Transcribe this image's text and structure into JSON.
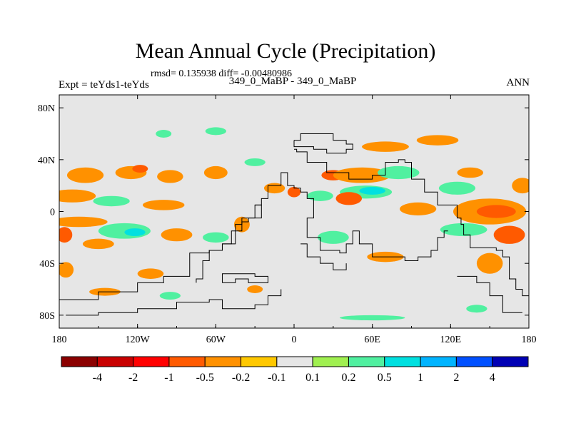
{
  "chart_data": {
    "type": "heatmap",
    "title": "Mean Annual Cycle (Precipitation)",
    "stats_line": "rmsd= 0.135938 diff= -0.00480986",
    "center_string": "349_0_MaBP - 349_0_MaBP",
    "left_string": "Expt = teYds1-teYds",
    "right_string": "ANN",
    "xlim": [
      -180,
      180
    ],
    "ylim": [
      -90,
      90
    ],
    "x_ticks": [
      {
        "value": -180,
        "label": "180"
      },
      {
        "value": -120,
        "label": "120W"
      },
      {
        "value": -60,
        "label": "60W"
      },
      {
        "value": 0,
        "label": "0"
      },
      {
        "value": 60,
        "label": "60E"
      },
      {
        "value": 120,
        "label": "120E"
      },
      {
        "value": 180,
        "label": "180"
      }
    ],
    "y_ticks": [
      {
        "value": 80,
        "label": "80N"
      },
      {
        "value": 40,
        "label": "40N"
      },
      {
        "value": 0,
        "label": "0"
      },
      {
        "value": -40,
        "label": "40S"
      },
      {
        "value": -80,
        "label": "80S"
      }
    ],
    "colorbar": {
      "colors": [
        "#8b0000",
        "#c80000",
        "#ff0000",
        "#ff5a00",
        "#ff9100",
        "#ffc800",
        "#e6e6e6",
        "#a0f050",
        "#50f0a0",
        "#00e0e0",
        "#00b4ff",
        "#0050ff",
        "#0000b4"
      ],
      "boundaries": [
        "-4",
        "-2",
        "-1",
        "-0.5",
        "-0.2",
        "-0.1",
        "0.1",
        "0.2",
        "0.5",
        "1",
        "2",
        "4"
      ]
    },
    "anomalies": [
      {
        "lon": -160,
        "lat": 28,
        "rx": 14,
        "ry": 6,
        "level": "-0.2"
      },
      {
        "lon": -125,
        "lat": 30,
        "rx": 12,
        "ry": 5,
        "level": "-0.2"
      },
      {
        "lon": -118,
        "lat": 33,
        "rx": 6,
        "ry": 3,
        "level": "-0.5"
      },
      {
        "lon": -95,
        "lat": 27,
        "rx": 10,
        "ry": 5,
        "level": "-0.2"
      },
      {
        "lon": -60,
        "lat": 30,
        "rx": 9,
        "ry": 5,
        "level": "-0.2"
      },
      {
        "lon": -170,
        "lat": 12,
        "rx": 18,
        "ry": 5,
        "level": "-0.2"
      },
      {
        "lon": -140,
        "lat": 8,
        "rx": 14,
        "ry": 4,
        "level": "0.2"
      },
      {
        "lon": -100,
        "lat": 5,
        "rx": 16,
        "ry": 4,
        "level": "-0.2"
      },
      {
        "lon": -165,
        "lat": -8,
        "rx": 22,
        "ry": 4,
        "level": "-0.2"
      },
      {
        "lon": -130,
        "lat": -15,
        "rx": 20,
        "ry": 6,
        "level": "0.2"
      },
      {
        "lon": -122,
        "lat": -16,
        "rx": 8,
        "ry": 3,
        "level": "0.5"
      },
      {
        "lon": -90,
        "lat": -18,
        "rx": 12,
        "ry": 5,
        "level": "-0.2"
      },
      {
        "lon": -176,
        "lat": -18,
        "rx": 6,
        "ry": 6,
        "level": "-0.5"
      },
      {
        "lon": -150,
        "lat": -25,
        "rx": 12,
        "ry": 4,
        "level": "-0.2"
      },
      {
        "lon": -60,
        "lat": -20,
        "rx": 10,
        "ry": 4,
        "level": "0.2"
      },
      {
        "lon": -40,
        "lat": -10,
        "rx": 6,
        "ry": 6,
        "level": "-0.2"
      },
      {
        "lon": -175,
        "lat": -45,
        "rx": 6,
        "ry": 6,
        "level": "-0.2"
      },
      {
        "lon": -110,
        "lat": -48,
        "rx": 10,
        "ry": 4,
        "level": "-0.2"
      },
      {
        "lon": -145,
        "lat": -62,
        "rx": 12,
        "ry": 3,
        "level": "-0.2"
      },
      {
        "lon": -95,
        "lat": -65,
        "rx": 8,
        "ry": 3,
        "level": "0.2"
      },
      {
        "lon": -100,
        "lat": 60,
        "rx": 6,
        "ry": 3,
        "level": "0.2"
      },
      {
        "lon": -60,
        "lat": 62,
        "rx": 8,
        "ry": 3,
        "level": "0.2"
      },
      {
        "lon": -30,
        "lat": 38,
        "rx": 8,
        "ry": 3,
        "level": "0.2"
      },
      {
        "lon": -15,
        "lat": 18,
        "rx": 8,
        "ry": 4,
        "level": "-0.2"
      },
      {
        "lon": 0,
        "lat": 15,
        "rx": 5,
        "ry": 4,
        "level": "-0.5"
      },
      {
        "lon": 20,
        "lat": 12,
        "rx": 10,
        "ry": 4,
        "level": "0.2"
      },
      {
        "lon": 30,
        "lat": 28,
        "rx": 9,
        "ry": 4,
        "level": "-0.5"
      },
      {
        "lon": 52,
        "lat": 28,
        "rx": 22,
        "ry": 6,
        "level": "-0.2"
      },
      {
        "lon": 55,
        "lat": 15,
        "rx": 20,
        "ry": 5,
        "level": "0.2"
      },
      {
        "lon": 60,
        "lat": 16,
        "rx": 10,
        "ry": 3,
        "level": "0.5"
      },
      {
        "lon": 42,
        "lat": 10,
        "rx": 10,
        "ry": 5,
        "level": "-0.5"
      },
      {
        "lon": 80,
        "lat": 30,
        "rx": 16,
        "ry": 5,
        "level": "0.2"
      },
      {
        "lon": 95,
        "lat": 2,
        "rx": 14,
        "ry": 5,
        "level": "-0.2"
      },
      {
        "lon": 70,
        "lat": 50,
        "rx": 18,
        "ry": 4,
        "level": "-0.2"
      },
      {
        "lon": 110,
        "lat": 55,
        "rx": 16,
        "ry": 4,
        "level": "-0.2"
      },
      {
        "lon": 135,
        "lat": 30,
        "rx": 10,
        "ry": 4,
        "level": "-0.2"
      },
      {
        "lon": 125,
        "lat": 18,
        "rx": 14,
        "ry": 5,
        "level": "0.2"
      },
      {
        "lon": 150,
        "lat": 0,
        "rx": 28,
        "ry": 10,
        "level": "-0.2"
      },
      {
        "lon": 155,
        "lat": 0,
        "rx": 15,
        "ry": 5,
        "level": "-0.5"
      },
      {
        "lon": 130,
        "lat": -14,
        "rx": 18,
        "ry": 5,
        "level": "0.2"
      },
      {
        "lon": 165,
        "lat": -18,
        "rx": 12,
        "ry": 7,
        "level": "-0.5"
      },
      {
        "lon": 175,
        "lat": 20,
        "rx": 8,
        "ry": 6,
        "level": "-0.2"
      },
      {
        "lon": 30,
        "lat": -20,
        "rx": 12,
        "ry": 5,
        "level": "0.2"
      },
      {
        "lon": 70,
        "lat": -35,
        "rx": 14,
        "ry": 4,
        "level": "-0.2"
      },
      {
        "lon": 150,
        "lat": -40,
        "rx": 10,
        "ry": 8,
        "level": "-0.2"
      },
      {
        "lon": 140,
        "lat": -75,
        "rx": 8,
        "ry": 3,
        "level": "0.2"
      },
      {
        "lon": 60,
        "lat": -82,
        "rx": 25,
        "ry": 2,
        "level": "0.2"
      },
      {
        "lon": -30,
        "lat": -60,
        "rx": 6,
        "ry": 3,
        "level": "-0.2"
      }
    ],
    "coastlines": [
      [
        [
          0,
          48
        ],
        [
          2,
          46
        ],
        [
          10,
          46
        ],
        [
          10,
          38
        ],
        [
          25,
          38
        ],
        [
          25,
          30
        ],
        [
          42,
          30
        ],
        [
          42,
          25
        ],
        [
          60,
          25
        ],
        [
          60,
          28
        ],
        [
          70,
          28
        ],
        [
          70,
          38
        ],
        [
          80,
          38
        ],
        [
          80,
          40
        ],
        [
          85,
          38
        ],
        [
          90,
          25
        ],
        [
          100,
          25
        ],
        [
          100,
          15
        ],
        [
          110,
          10
        ],
        [
          110,
          5
        ],
        [
          125,
          5
        ],
        [
          125,
          -5
        ],
        [
          128,
          -10
        ],
        [
          130,
          -10
        ],
        [
          130,
          -18
        ],
        [
          135,
          -28
        ],
        [
          155,
          -30
        ],
        [
          160,
          -35
        ],
        [
          165,
          -52
        ],
        [
          170,
          -60
        ],
        [
          175,
          -65
        ],
        [
          180,
          -70
        ]
      ],
      [
        [
          -180,
          -68
        ],
        [
          -150,
          -62
        ],
        [
          -120,
          -55
        ],
        [
          -100,
          -50
        ],
        [
          -80,
          -32
        ],
        [
          -65,
          -30
        ],
        [
          -55,
          -25
        ],
        [
          -48,
          -15
        ],
        [
          -45,
          -10
        ],
        [
          -40,
          -5
        ],
        [
          -30,
          5
        ],
        [
          -25,
          10
        ],
        [
          -20,
          15
        ],
        [
          -20,
          20
        ],
        [
          -10,
          30
        ],
        [
          -5,
          20
        ],
        [
          0,
          18
        ],
        [
          5,
          15
        ],
        [
          10,
          10
        ],
        [
          15,
          -5
        ],
        [
          10,
          -20
        ],
        [
          20,
          -30
        ],
        [
          35,
          -32
        ],
        [
          40,
          -25
        ],
        [
          45,
          -15
        ],
        [
          50,
          -20
        ],
        [
          50,
          -25
        ],
        [
          60,
          -25
        ],
        [
          60,
          -35
        ],
        [
          85,
          -38
        ],
        [
          95,
          -35
        ],
        [
          105,
          -30
        ],
        [
          110,
          -20
        ],
        [
          115,
          -15
        ],
        [
          118,
          -15
        ]
      ],
      [
        [
          -30,
          5
        ],
        [
          -25,
          -5
        ],
        [
          -35,
          -8
        ],
        [
          -40,
          -15
        ],
        [
          -45,
          -25
        ],
        [
          -55,
          -30
        ],
        [
          -65,
          -38
        ],
        [
          -70,
          -45
        ],
        [
          -70,
          -52
        ],
        [
          -75,
          -55
        ]
      ],
      [
        [
          -175,
          -80
        ],
        [
          -150,
          -78
        ],
        [
          -120,
          -75
        ],
        [
          -90,
          -70
        ],
        [
          -65,
          -68
        ],
        [
          -55,
          -75
        ],
        [
          -30,
          -72
        ],
        [
          -20,
          -65
        ],
        [
          -10,
          -60
        ]
      ],
      [
        [
          -55,
          -55
        ],
        [
          -45,
          -52
        ],
        [
          -35,
          -55
        ],
        [
          -25,
          -55
        ],
        [
          -20,
          -50
        ],
        [
          -30,
          -48
        ],
        [
          -50,
          -48
        ],
        [
          -55,
          -55
        ]
      ],
      [
        [
          0,
          55
        ],
        [
          5,
          60
        ],
        [
          20,
          60
        ],
        [
          30,
          55
        ],
        [
          40,
          52
        ],
        [
          45,
          48
        ],
        [
          40,
          45
        ],
        [
          25,
          48
        ],
        [
          15,
          50
        ],
        [
          0,
          55
        ]
      ],
      [
        [
          125,
          -50
        ],
        [
          140,
          -55
        ],
        [
          150,
          -65
        ],
        [
          160,
          -78
        ],
        [
          175,
          -78
        ]
      ],
      [
        [
          5,
          -25
        ],
        [
          10,
          -35
        ],
        [
          20,
          -40
        ],
        [
          30,
          -45
        ],
        [
          40,
          -40
        ]
      ]
    ]
  }
}
